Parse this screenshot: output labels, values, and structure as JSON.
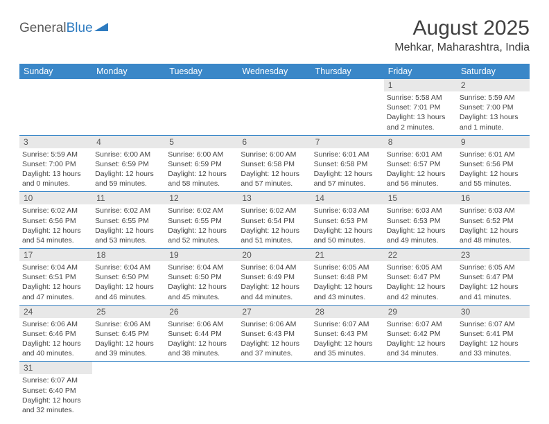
{
  "logo": {
    "text1": "General",
    "text2": "Blue"
  },
  "title": "August 2025",
  "location": "Mehkar, Maharashtra, India",
  "colors": {
    "header_bg": "#3a87c8",
    "header_fg": "#ffffff",
    "daynum_bg": "#e8e8e8",
    "border": "#3a87c8",
    "logo_gray": "#5a5a5a",
    "logo_blue": "#2e7bc0"
  },
  "weekdays": [
    "Sunday",
    "Monday",
    "Tuesday",
    "Wednesday",
    "Thursday",
    "Friday",
    "Saturday"
  ],
  "weeks": [
    [
      null,
      null,
      null,
      null,
      null,
      {
        "n": "1",
        "sr": "Sunrise: 5:58 AM",
        "ss": "Sunset: 7:01 PM",
        "d1": "Daylight: 13 hours",
        "d2": "and 2 minutes."
      },
      {
        "n": "2",
        "sr": "Sunrise: 5:59 AM",
        "ss": "Sunset: 7:00 PM",
        "d1": "Daylight: 13 hours",
        "d2": "and 1 minute."
      }
    ],
    [
      {
        "n": "3",
        "sr": "Sunrise: 5:59 AM",
        "ss": "Sunset: 7:00 PM",
        "d1": "Daylight: 13 hours",
        "d2": "and 0 minutes."
      },
      {
        "n": "4",
        "sr": "Sunrise: 6:00 AM",
        "ss": "Sunset: 6:59 PM",
        "d1": "Daylight: 12 hours",
        "d2": "and 59 minutes."
      },
      {
        "n": "5",
        "sr": "Sunrise: 6:00 AM",
        "ss": "Sunset: 6:59 PM",
        "d1": "Daylight: 12 hours",
        "d2": "and 58 minutes."
      },
      {
        "n": "6",
        "sr": "Sunrise: 6:00 AM",
        "ss": "Sunset: 6:58 PM",
        "d1": "Daylight: 12 hours",
        "d2": "and 57 minutes."
      },
      {
        "n": "7",
        "sr": "Sunrise: 6:01 AM",
        "ss": "Sunset: 6:58 PM",
        "d1": "Daylight: 12 hours",
        "d2": "and 57 minutes."
      },
      {
        "n": "8",
        "sr": "Sunrise: 6:01 AM",
        "ss": "Sunset: 6:57 PM",
        "d1": "Daylight: 12 hours",
        "d2": "and 56 minutes."
      },
      {
        "n": "9",
        "sr": "Sunrise: 6:01 AM",
        "ss": "Sunset: 6:56 PM",
        "d1": "Daylight: 12 hours",
        "d2": "and 55 minutes."
      }
    ],
    [
      {
        "n": "10",
        "sr": "Sunrise: 6:02 AM",
        "ss": "Sunset: 6:56 PM",
        "d1": "Daylight: 12 hours",
        "d2": "and 54 minutes."
      },
      {
        "n": "11",
        "sr": "Sunrise: 6:02 AM",
        "ss": "Sunset: 6:55 PM",
        "d1": "Daylight: 12 hours",
        "d2": "and 53 minutes."
      },
      {
        "n": "12",
        "sr": "Sunrise: 6:02 AM",
        "ss": "Sunset: 6:55 PM",
        "d1": "Daylight: 12 hours",
        "d2": "and 52 minutes."
      },
      {
        "n": "13",
        "sr": "Sunrise: 6:02 AM",
        "ss": "Sunset: 6:54 PM",
        "d1": "Daylight: 12 hours",
        "d2": "and 51 minutes."
      },
      {
        "n": "14",
        "sr": "Sunrise: 6:03 AM",
        "ss": "Sunset: 6:53 PM",
        "d1": "Daylight: 12 hours",
        "d2": "and 50 minutes."
      },
      {
        "n": "15",
        "sr": "Sunrise: 6:03 AM",
        "ss": "Sunset: 6:53 PM",
        "d1": "Daylight: 12 hours",
        "d2": "and 49 minutes."
      },
      {
        "n": "16",
        "sr": "Sunrise: 6:03 AM",
        "ss": "Sunset: 6:52 PM",
        "d1": "Daylight: 12 hours",
        "d2": "and 48 minutes."
      }
    ],
    [
      {
        "n": "17",
        "sr": "Sunrise: 6:04 AM",
        "ss": "Sunset: 6:51 PM",
        "d1": "Daylight: 12 hours",
        "d2": "and 47 minutes."
      },
      {
        "n": "18",
        "sr": "Sunrise: 6:04 AM",
        "ss": "Sunset: 6:50 PM",
        "d1": "Daylight: 12 hours",
        "d2": "and 46 minutes."
      },
      {
        "n": "19",
        "sr": "Sunrise: 6:04 AM",
        "ss": "Sunset: 6:50 PM",
        "d1": "Daylight: 12 hours",
        "d2": "and 45 minutes."
      },
      {
        "n": "20",
        "sr": "Sunrise: 6:04 AM",
        "ss": "Sunset: 6:49 PM",
        "d1": "Daylight: 12 hours",
        "d2": "and 44 minutes."
      },
      {
        "n": "21",
        "sr": "Sunrise: 6:05 AM",
        "ss": "Sunset: 6:48 PM",
        "d1": "Daylight: 12 hours",
        "d2": "and 43 minutes."
      },
      {
        "n": "22",
        "sr": "Sunrise: 6:05 AM",
        "ss": "Sunset: 6:47 PM",
        "d1": "Daylight: 12 hours",
        "d2": "and 42 minutes."
      },
      {
        "n": "23",
        "sr": "Sunrise: 6:05 AM",
        "ss": "Sunset: 6:47 PM",
        "d1": "Daylight: 12 hours",
        "d2": "and 41 minutes."
      }
    ],
    [
      {
        "n": "24",
        "sr": "Sunrise: 6:06 AM",
        "ss": "Sunset: 6:46 PM",
        "d1": "Daylight: 12 hours",
        "d2": "and 40 minutes."
      },
      {
        "n": "25",
        "sr": "Sunrise: 6:06 AM",
        "ss": "Sunset: 6:45 PM",
        "d1": "Daylight: 12 hours",
        "d2": "and 39 minutes."
      },
      {
        "n": "26",
        "sr": "Sunrise: 6:06 AM",
        "ss": "Sunset: 6:44 PM",
        "d1": "Daylight: 12 hours",
        "d2": "and 38 minutes."
      },
      {
        "n": "27",
        "sr": "Sunrise: 6:06 AM",
        "ss": "Sunset: 6:43 PM",
        "d1": "Daylight: 12 hours",
        "d2": "and 37 minutes."
      },
      {
        "n": "28",
        "sr": "Sunrise: 6:07 AM",
        "ss": "Sunset: 6:43 PM",
        "d1": "Daylight: 12 hours",
        "d2": "and 35 minutes."
      },
      {
        "n": "29",
        "sr": "Sunrise: 6:07 AM",
        "ss": "Sunset: 6:42 PM",
        "d1": "Daylight: 12 hours",
        "d2": "and 34 minutes."
      },
      {
        "n": "30",
        "sr": "Sunrise: 6:07 AM",
        "ss": "Sunset: 6:41 PM",
        "d1": "Daylight: 12 hours",
        "d2": "and 33 minutes."
      }
    ],
    [
      {
        "n": "31",
        "sr": "Sunrise: 6:07 AM",
        "ss": "Sunset: 6:40 PM",
        "d1": "Daylight: 12 hours",
        "d2": "and 32 minutes."
      },
      null,
      null,
      null,
      null,
      null,
      null
    ]
  ]
}
